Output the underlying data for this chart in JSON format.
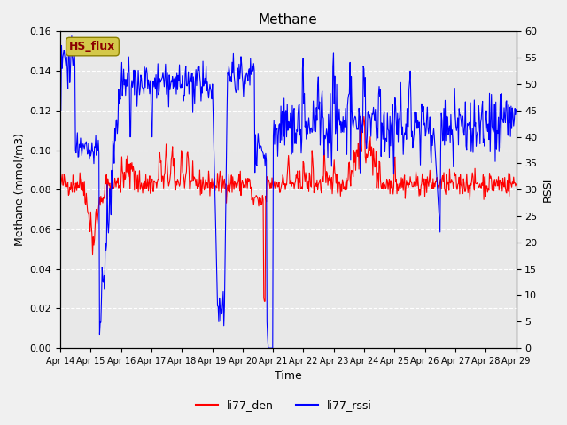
{
  "title": "Methane",
  "xlabel": "Time",
  "ylabel_left": "Methane (mmol/m3)",
  "ylabel_right": "RSSI",
  "ylim_left": [
    0.0,
    0.16
  ],
  "ylim_right": [
    0,
    60
  ],
  "yticks_left": [
    0.0,
    0.02,
    0.04,
    0.06,
    0.08,
    0.1,
    0.12,
    0.14,
    0.16
  ],
  "yticks_right": [
    0,
    5,
    10,
    15,
    20,
    25,
    30,
    35,
    40,
    45,
    50,
    55,
    60
  ],
  "xtick_labels": [
    "Apr 14",
    "Apr 15",
    "Apr 16",
    "Apr 17",
    "Apr 18",
    "Apr 19",
    "Apr 20",
    "Apr 21",
    "Apr 22",
    "Apr 23",
    "Apr 24",
    "Apr 25",
    "Apr 26",
    "Apr 27",
    "Apr 28",
    "Apr 29"
  ],
  "color_red": "#ff0000",
  "color_blue": "#0000ff",
  "bg_color": "#e8e8e8",
  "legend_entries": [
    "li77_den",
    "li77_rssi"
  ],
  "hs_flux_label": "HS_flux",
  "hs_flux_bg": "#d4c84a",
  "hs_flux_text_color": "#8b0000"
}
